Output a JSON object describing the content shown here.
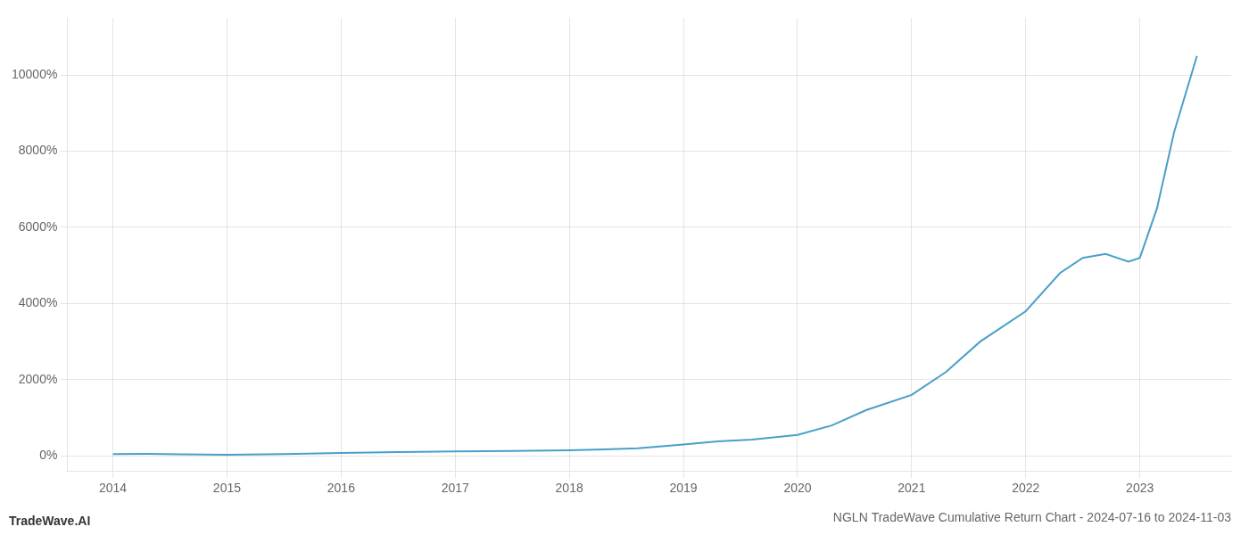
{
  "chart_data": {
    "type": "line",
    "title": "NGLN TradeWave Cumulative Return Chart - 2024-07-16 to 2024-11-03",
    "annotations": [
      "TradeWave.AI"
    ],
    "color": "#4a9fc8",
    "grid": true,
    "x": [
      2014.0,
      2014.3,
      2014.6,
      2015.0,
      2015.5,
      2016.0,
      2016.5,
      2017.0,
      2017.5,
      2018.0,
      2018.3,
      2018.6,
      2019.0,
      2019.3,
      2019.6,
      2020.0,
      2020.3,
      2020.6,
      2021.0,
      2021.3,
      2021.6,
      2022.0,
      2022.3,
      2022.5,
      2022.7,
      2022.9,
      2023.0,
      2023.15,
      2023.3,
      2023.5
    ],
    "values": [
      50,
      55,
      45,
      30,
      50,
      80,
      100,
      120,
      130,
      150,
      170,
      200,
      300,
      380,
      430,
      550,
      800,
      1200,
      1600,
      2200,
      3000,
      3800,
      4800,
      5200,
      5300,
      5100,
      5200,
      6500,
      8500,
      10500
    ],
    "xlim": [
      2013.6,
      2023.8
    ],
    "xticks": [
      2014,
      2015,
      2016,
      2017,
      2018,
      2019,
      2020,
      2021,
      2022,
      2023
    ],
    "ylim": [
      -400,
      11500
    ],
    "yticks": [
      {
        "value": 0,
        "label": "0%"
      },
      {
        "value": 2000,
        "label": "2000%"
      },
      {
        "value": 4000,
        "label": "4000%"
      },
      {
        "value": 6000,
        "label": "6000%"
      },
      {
        "value": 8000,
        "label": "8000%"
      },
      {
        "value": 10000,
        "label": "10000%"
      }
    ]
  }
}
